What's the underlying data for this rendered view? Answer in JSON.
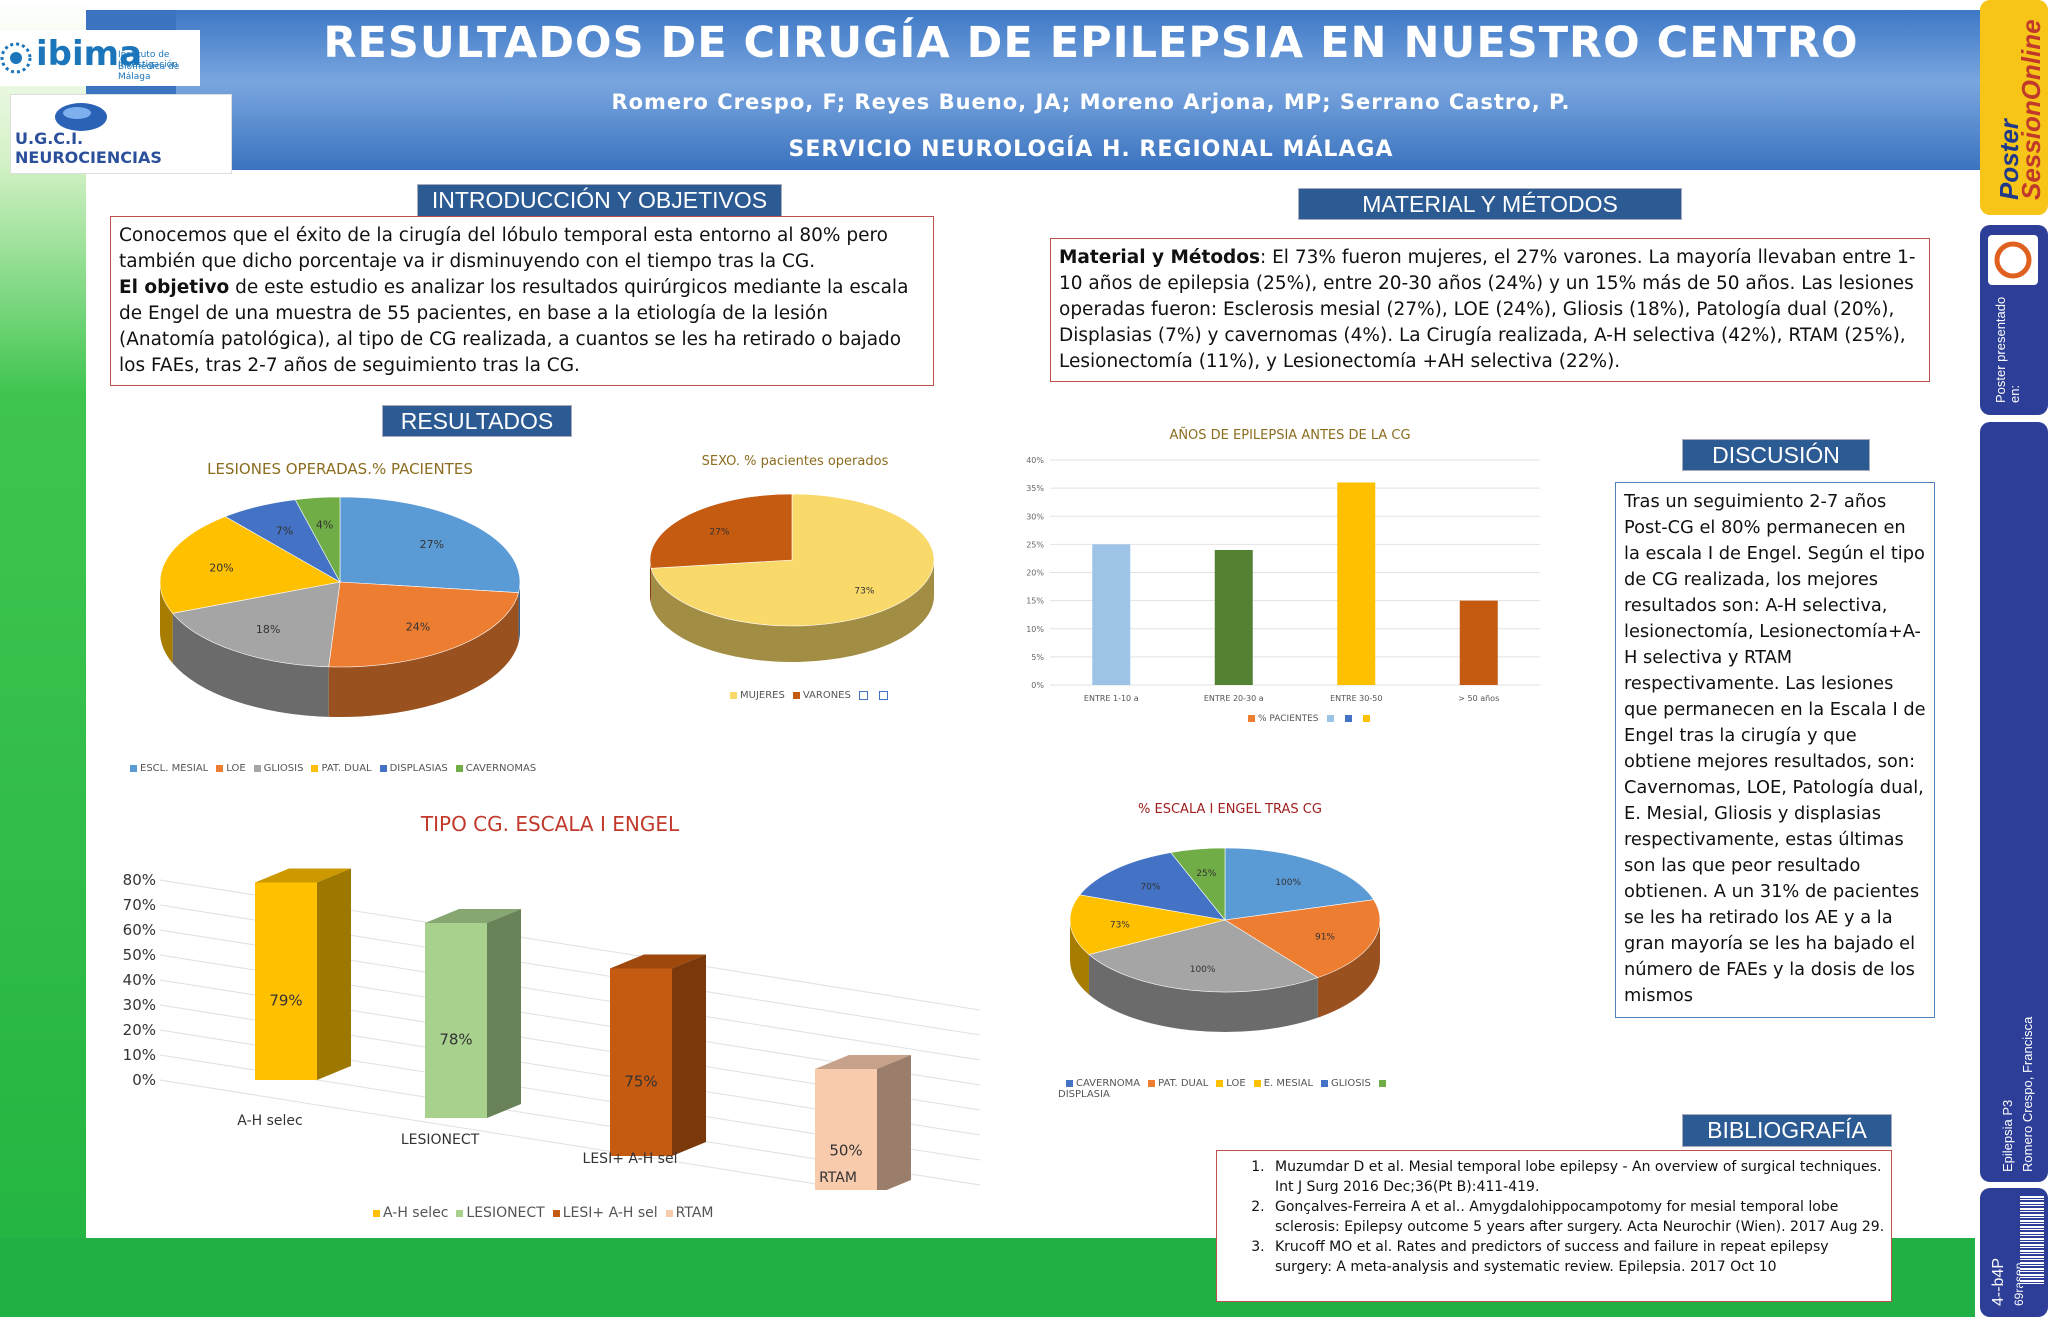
{
  "header": {
    "title": "RESULTADOS DE CIRUGÍA DE EPILEPSIA EN NUESTRO CENTRO",
    "authors": "Romero Crespo, F; Reyes Bueno, JA; Moreno Arjona, MP; Serrano Castro, P.",
    "service": "SERVICIO NEUROLOGÍA H. REGIONAL MÁLAGA"
  },
  "logos": {
    "ibima_name": "ibima",
    "ibima_sub1": "Instituto de Investigación",
    "ibima_sub2": "Biomédica de Málaga",
    "ugci": "U.G.C.I. NEUROCIENCIAS"
  },
  "sections": {
    "intro_title": "INTRODUCCIÓN Y OBJETIVOS",
    "intro_p1": "Conocemos que el éxito de la cirugía del lóbulo temporal esta entorno al 80% pero también que dicho porcentaje va ir disminuyendo con el tiempo tras la CG.",
    "intro_bold": "El objetivo",
    "intro_p2": " de este estudio es analizar los resultados quirúrgicos mediante la escala de Engel de una muestra de 55 pacientes, en base a la etiología de la lesión (Anatomía patológica), al tipo de CG realizada, a cuantos se les ha retirado o bajado los FAEs, tras 2-7 años de seguimiento tras la CG.",
    "methods_title": "MATERIAL Y MÉTODOS",
    "methods_bold": "Material y Métodos",
    "methods_text": ": El 73% fueron mujeres, el 27% varones. La mayoría llevaban entre 1-10 años de epilepsia (25%), entre 20-30 años (24%) y un 15% más de 50 años. Las lesiones operadas fueron: Esclerosis mesial (27%), LOE (24%), Gliosis (18%), Patología dual (20%), Displasias (7%) y cavernomas (4%). La Cirugía realizada, A-H selectiva (42%), RTAM (25%),  Lesionectomía (11%), y Lesionectomía +AH selectiva (22%).",
    "results_title": "RESULTADOS",
    "discussion_title": "DISCUSIÓN",
    "discussion_text": "Tras un seguimiento 2-7 años Post-CG el 80% permanecen en la escala I de Engel. Según el tipo de CG realizada, los mejores resultados son: A-H selectiva, lesionectomía, Lesionectomía+A-H selectiva y RTAM respectivamente. Las lesiones que permanecen en la Escala I de Engel  tras la cirugía y que obtiene mejores resultados, son: Cavernomas, LOE, Patología dual, E. Mesial, Gliosis y displasias respectivamente, estas últimas son las que peor resultado obtienen. A un 31% de pacientes se les ha retirado los AE y a la gran mayoría se les ha bajado el número de FAEs y la dosis de los mismos",
    "bib_title": "BIBLIOGRAFÍA",
    "bib": [
      "Muzumdar D et al. Mesial temporal lobe epilepsy - An overview of surgical techniques. Int J Surg 2016 Dec;36(Pt B):411-419.",
      "Gonçalves-Ferreira A et al.. Amygdalohippocampotomy for mesial temporal lobe sclerosis: Epilepsy outcome 5 years after surgery. Acta Neurochir (Wien). 2017 Aug 29.",
      "Krucoff MO et al. Rates and predictors of success and failure in repeat epilepsy surgery: A meta-analysis and systematic review. Epilepsia. 2017 Oct 10"
    ]
  },
  "side_panel": {
    "brand1": "Poster",
    "brand2": "SessionOnline",
    "presented": "Poster presentado en:",
    "session": "Epilepsia P3",
    "author": "Romero Crespo, Francisca",
    "code": "4--b4P",
    "code2": "69rasen"
  },
  "colors": {
    "blue": "#5b9bd5",
    "orange": "#ed7d31",
    "gray": "#a5a5a5",
    "yellow": "#ffc000",
    "darkblue": "#4472c4",
    "green": "#70ad47",
    "lightyellow": "#f9d96a",
    "rust": "#c55a11",
    "lightblue": "#9dc3e6",
    "darkgreen": "#548235",
    "lightgreen": "#a9d18e",
    "peach": "#f8cbad"
  },
  "chart_data": [
    {
      "type": "pie",
      "title": "LESIONES OPERADAS.% PACIENTES",
      "categories": [
        "ESCL. MESIAL",
        "LOE",
        "GLIOSIS",
        "PAT. DUAL",
        "DISPLASIAS",
        "CAVERNOMAS"
      ],
      "values": [
        27,
        24,
        18,
        20,
        7,
        4
      ],
      "labels": [
        "27%",
        "24%",
        "18%",
        "20%",
        "7%",
        "4%"
      ],
      "legend": "bottom"
    },
    {
      "type": "pie",
      "title": "SEXO. % pacientes operados",
      "categories": [
        "MUJERES",
        "VARONES",
        "",
        ""
      ],
      "values": [
        73,
        27
      ],
      "labels": [
        "73%",
        "27%"
      ],
      "legend": "bottom"
    },
    {
      "type": "bar",
      "title": "AÑOS DE EPILEPSIA ANTES DE LA CG",
      "categories": [
        "ENTRE 1-10 a",
        "ENTRE 20-30 a",
        "ENTRE 30-50",
        "> 50 años"
      ],
      "values": [
        25,
        24,
        36,
        15
      ],
      "ylim": [
        0,
        40
      ],
      "yticks": [
        "0%",
        "5%",
        "10%",
        "15%",
        "20%",
        "25%",
        "30%",
        "35%",
        "40%"
      ],
      "legend_label": "% PACIENTES",
      "grid": true
    },
    {
      "type": "bar",
      "title": "TIPO CG. ESCALA I ENGEL",
      "categories": [
        "A-H selec",
        "LESIONECT",
        "LESI+ A-H sel",
        "RTAM"
      ],
      "values": [
        79,
        78,
        75,
        50
      ],
      "labels": [
        "79%",
        "78%",
        "75%",
        "50%"
      ],
      "ylim": [
        0,
        80
      ],
      "yticks": [
        "0%",
        "10%",
        "20%",
        "30%",
        "40%",
        "50%",
        "60%",
        "70%",
        "80%"
      ],
      "legend": "bottom",
      "grid": true
    },
    {
      "type": "pie",
      "title": "% ESCALA I ENGEL TRAS CG",
      "categories": [
        "CAVERNOMA",
        "PAT. DUAL",
        "LOE",
        "E. MESIAL",
        "GLIOSIS",
        "DISPLASIA"
      ],
      "slice_labels": [
        "100%",
        "91%",
        "100%",
        "73%",
        "70%",
        "25%"
      ],
      "slice_share": [
        18,
        17,
        24,
        12,
        12,
        5
      ],
      "legend": "bottom"
    }
  ]
}
